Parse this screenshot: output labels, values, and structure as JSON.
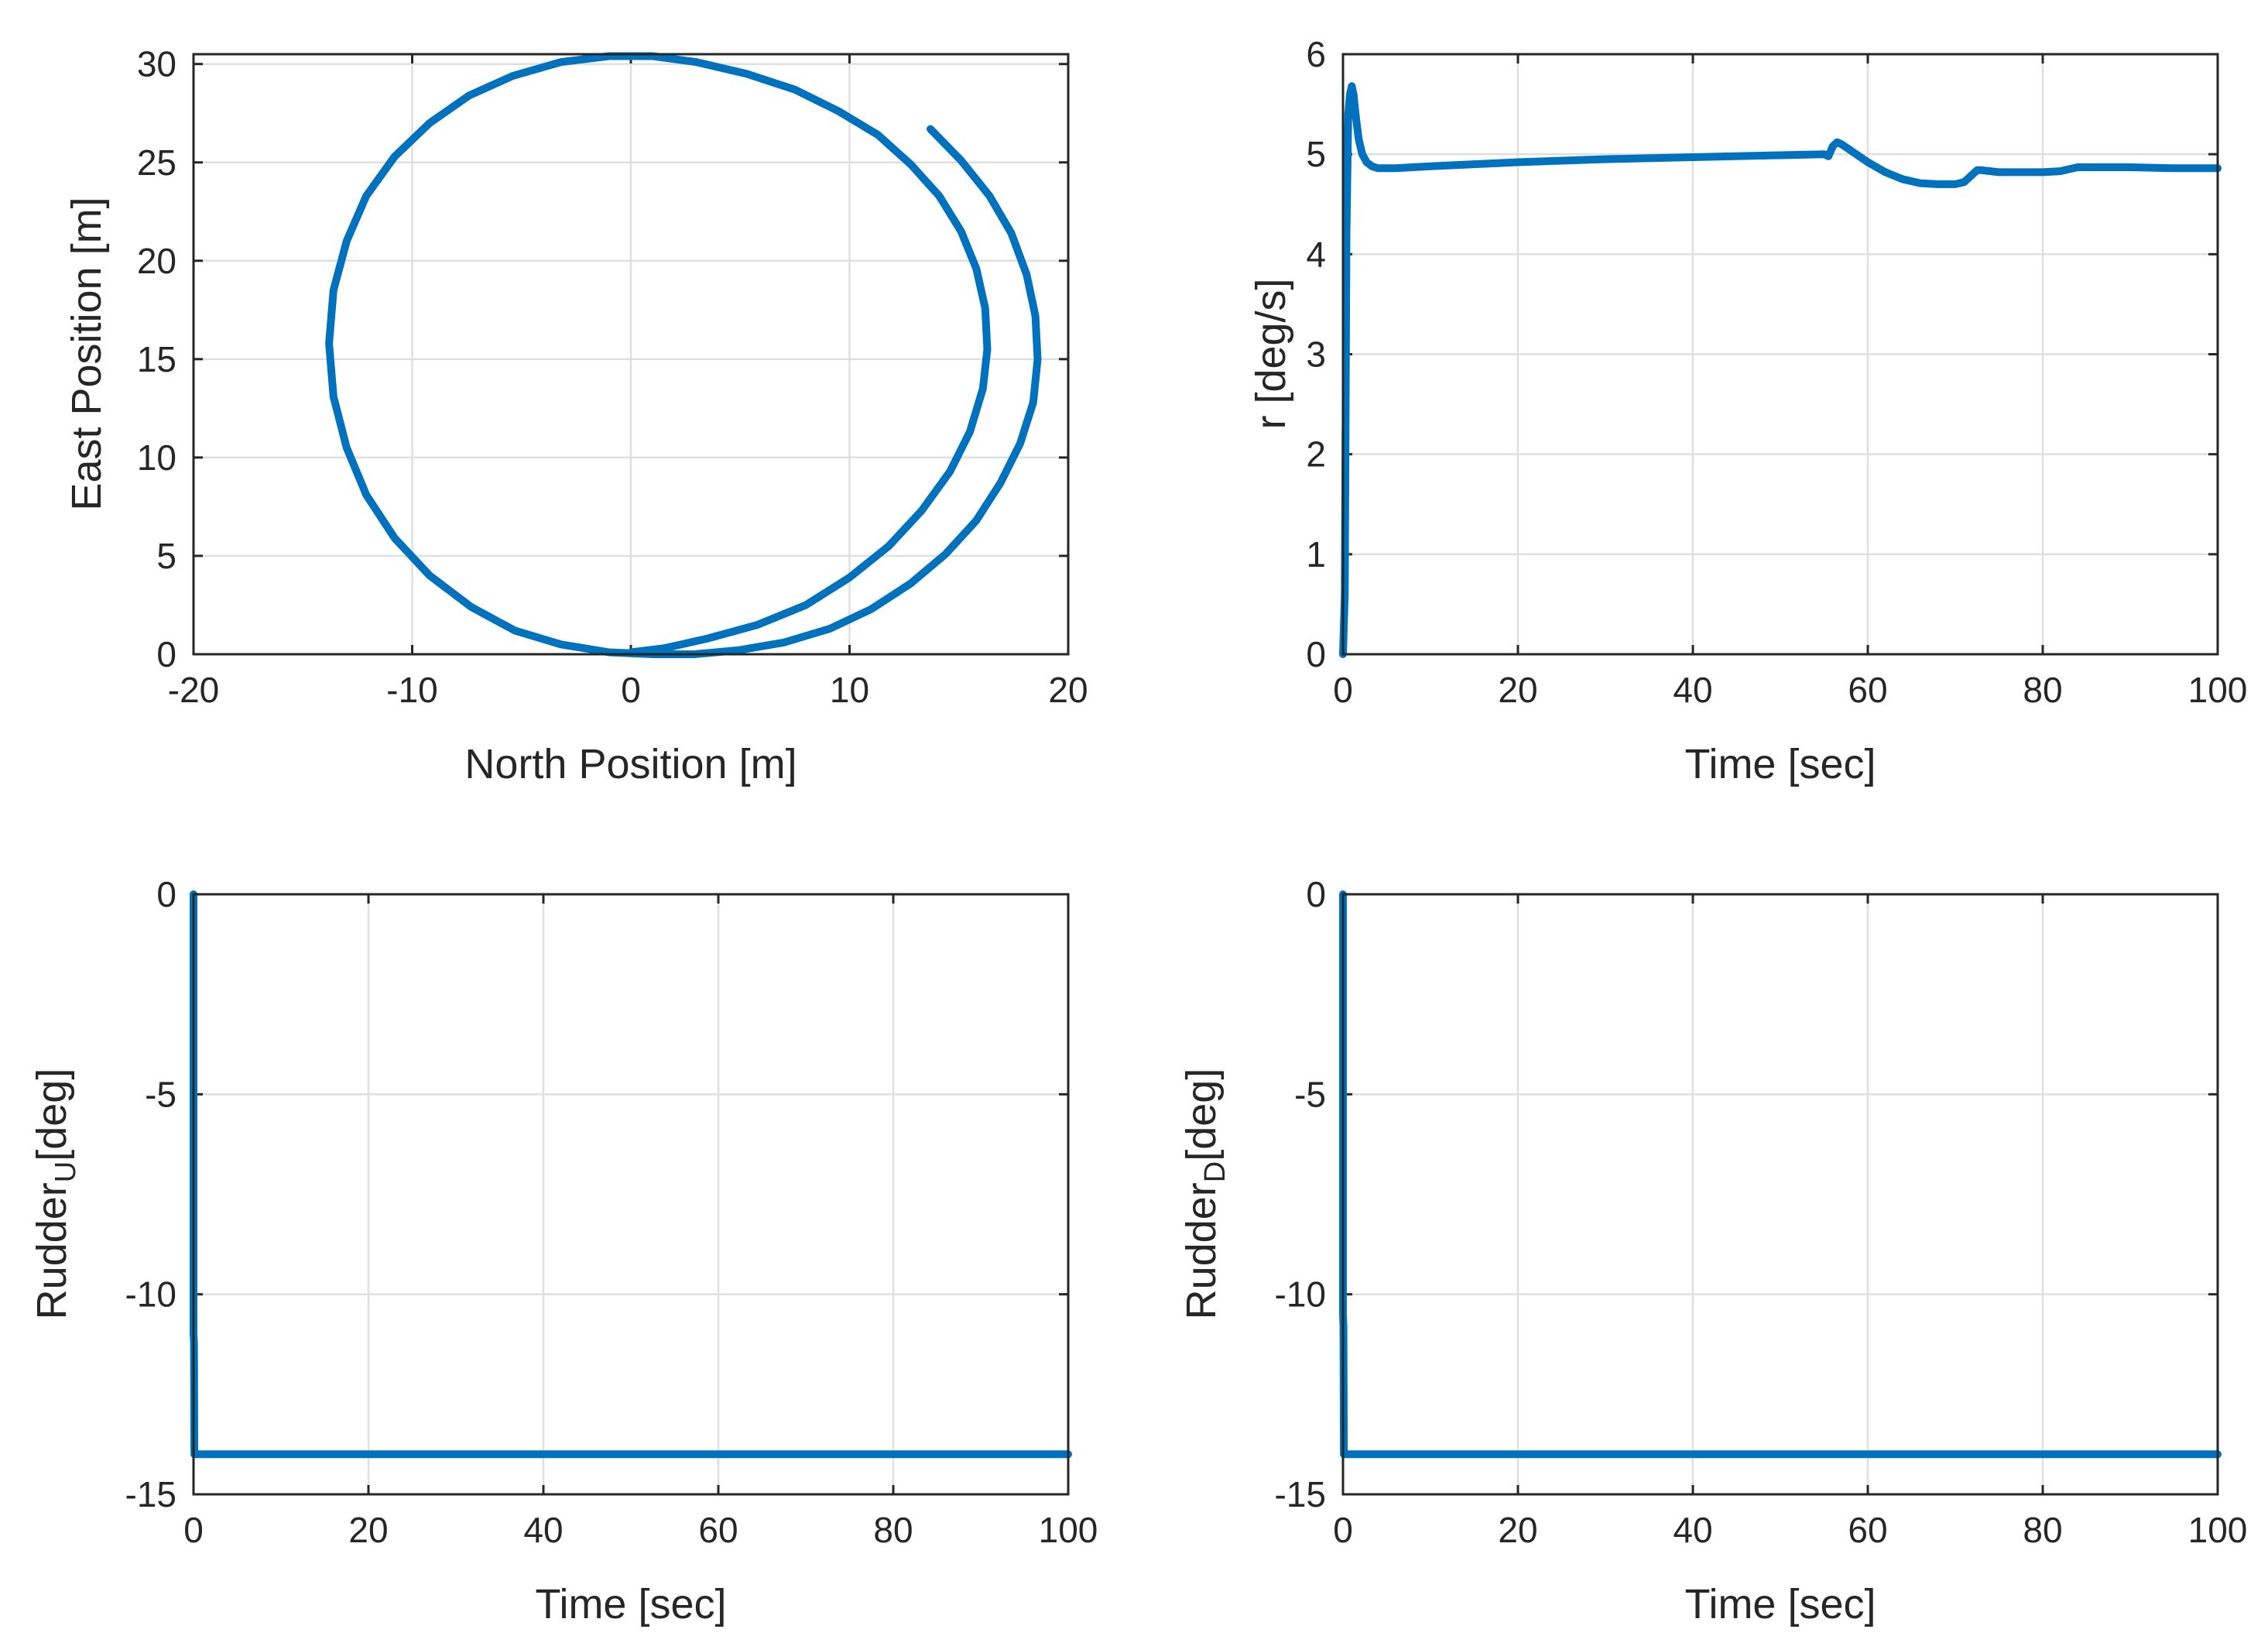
{
  "chart_data": [
    {
      "id": "trajectory",
      "type": "line",
      "title": "",
      "xlabel": "North Position [m]",
      "ylabel": "East Position [m]",
      "xlim": [
        -20,
        20
      ],
      "ylim": [
        0,
        30.5
      ],
      "xticks": [
        -20,
        -10,
        0,
        10,
        20
      ],
      "yticks": [
        0,
        5,
        10,
        15,
        20,
        25,
        30
      ],
      "xtick_labels": [
        "-20",
        "-10",
        "0",
        "10",
        "20"
      ],
      "ytick_labels": [
        "0",
        "5",
        "10",
        "15",
        "20",
        "25",
        "30"
      ],
      "grid": true,
      "series": [
        {
          "name": "trajectory",
          "color": "#0072bd",
          "x": [
            0,
            1.5,
            3.5,
            5.8,
            8.0,
            10.0,
            11.8,
            13.3,
            14.6,
            15.5,
            16.1,
            16.3,
            16.2,
            15.8,
            15.1,
            14.1,
            12.8,
            11.3,
            9.5,
            7.5,
            5.3,
            3.0,
            1.0,
            -1.0,
            -3.2,
            -5.4,
            -7.4,
            -9.2,
            -10.8,
            -12.1,
            -13.0,
            -13.6,
            -13.8,
            -13.6,
            -13.0,
            -12.1,
            -10.8,
            -9.2,
            -7.3,
            -5.3,
            -3.2,
            -1.0,
            1.0,
            2.9,
            4.9,
            7.0,
            9.1,
            11.0,
            12.8,
            14.4,
            15.8,
            16.9,
            17.8,
            18.4,
            18.6,
            18.5,
            18.1,
            17.4,
            16.4,
            15.1,
            13.7
          ],
          "y": [
            0.1,
            0.3,
            0.8,
            1.5,
            2.5,
            3.9,
            5.5,
            7.3,
            9.3,
            11.3,
            13.5,
            15.5,
            17.6,
            19.6,
            21.5,
            23.3,
            24.9,
            26.4,
            27.6,
            28.7,
            29.5,
            30.1,
            30.4,
            30.4,
            30.1,
            29.4,
            28.4,
            27.0,
            25.3,
            23.3,
            21.0,
            18.5,
            15.8,
            13.1,
            10.5,
            8.1,
            5.9,
            4.0,
            2.4,
            1.2,
            0.5,
            0.1,
            0.0,
            0.0,
            0.2,
            0.6,
            1.3,
            2.3,
            3.6,
            5.1,
            6.8,
            8.7,
            10.7,
            12.8,
            15.0,
            17.2,
            19.3,
            21.4,
            23.3,
            25.1,
            26.7
          ]
        }
      ]
    },
    {
      "id": "yaw-rate",
      "type": "line",
      "title": "",
      "xlabel": "Time [sec]",
      "ylabel": "r [deg/s]",
      "xlim": [
        0,
        100
      ],
      "ylim": [
        0,
        6
      ],
      "xticks": [
        0,
        20,
        40,
        60,
        80,
        100
      ],
      "yticks": [
        0,
        1,
        2,
        3,
        4,
        5,
        6
      ],
      "xtick_labels": [
        "0",
        "20",
        "40",
        "60",
        "80",
        "100"
      ],
      "ytick_labels": [
        "0",
        "1",
        "2",
        "3",
        "4",
        "5",
        "6"
      ],
      "grid": true,
      "series": [
        {
          "name": "r",
          "color": "#0072bd",
          "x": [
            0,
            0.2,
            0.4,
            0.6,
            0.8,
            1.0,
            1.2,
            1.5,
            1.8,
            2.2,
            2.7,
            3.3,
            4.0,
            5.0,
            6.0,
            8,
            10,
            15,
            20,
            30,
            40,
            50,
            55,
            55.5,
            56,
            56.5,
            57,
            58,
            60,
            62,
            64,
            66,
            68,
            70,
            71,
            72,
            72.5,
            73,
            75,
            78,
            80,
            82,
            83,
            84,
            85,
            90,
            95,
            100
          ],
          "y": [
            0,
            0.6,
            4.2,
            5.4,
            5.6,
            5.68,
            5.6,
            5.35,
            5.15,
            5.0,
            4.92,
            4.88,
            4.86,
            4.86,
            4.86,
            4.87,
            4.88,
            4.9,
            4.92,
            4.95,
            4.97,
            4.99,
            5.0,
            4.98,
            5.08,
            5.12,
            5.1,
            5.04,
            4.92,
            4.82,
            4.75,
            4.71,
            4.7,
            4.7,
            4.72,
            4.8,
            4.84,
            4.84,
            4.82,
            4.82,
            4.82,
            4.83,
            4.85,
            4.87,
            4.87,
            4.87,
            4.86,
            4.86
          ]
        }
      ]
    },
    {
      "id": "rudder-upper",
      "type": "line",
      "title": "",
      "xlabel": "Time [sec]",
      "ylabel_main": "Rudder",
      "ylabel_sub": "U",
      "ylabel_tail": "[deg]",
      "xlim": [
        0,
        100
      ],
      "ylim": [
        -15,
        0
      ],
      "xticks": [
        0,
        20,
        40,
        60,
        80,
        100
      ],
      "yticks": [
        -15,
        -10,
        -5,
        0
      ],
      "xtick_labels": [
        "0",
        "20",
        "40",
        "60",
        "80",
        "100"
      ],
      "ytick_labels": [
        "-15",
        "-10",
        "-5",
        "0"
      ],
      "grid": true,
      "series": [
        {
          "name": "Rudder U",
          "color": "#0072bd",
          "x": [
            0,
            0,
            0.05,
            0.1,
            100
          ],
          "y": [
            0,
            -11,
            -11.2,
            -14,
            -14
          ]
        }
      ]
    },
    {
      "id": "rudder-lower",
      "type": "line",
      "title": "",
      "xlabel": "Time [sec]",
      "ylabel_main": "Rudder",
      "ylabel_sub": "D",
      "ylabel_tail": "[deg]",
      "xlim": [
        0,
        100
      ],
      "ylim": [
        -15,
        0
      ],
      "xticks": [
        0,
        20,
        40,
        60,
        80,
        100
      ],
      "yticks": [
        -15,
        -10,
        -5,
        0
      ],
      "xtick_labels": [
        "0",
        "20",
        "40",
        "60",
        "80",
        "100"
      ],
      "ytick_labels": [
        "-15",
        "-10",
        "-5",
        "0"
      ],
      "grid": true,
      "series": [
        {
          "name": "Rudder D",
          "color": "#0072bd",
          "x": [
            0,
            0,
            0.05,
            0.1,
            100
          ],
          "y": [
            0,
            -10.5,
            -10.8,
            -14,
            -14
          ]
        }
      ]
    }
  ]
}
